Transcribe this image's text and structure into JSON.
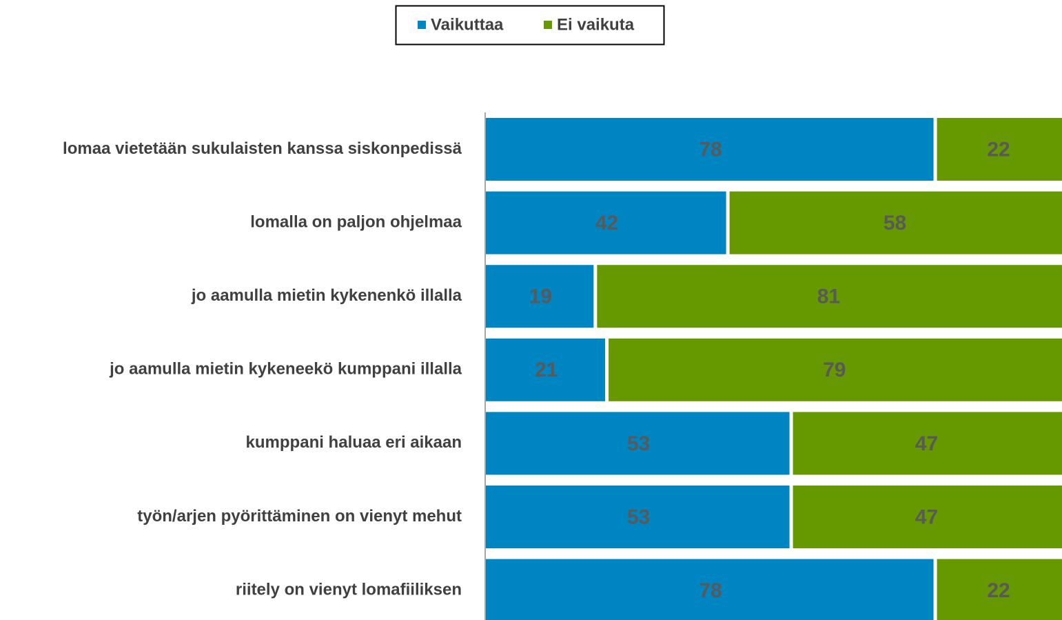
{
  "chart_data": {
    "type": "stacked-bar-horizontal",
    "categories": [
      "lomaa vietetään sukulaisten kanssa siskonpedissä",
      "lomalla on paljon ohjelmaa",
      "jo aamulla mietin kykenenkö illalla",
      "jo aamulla mietin kykeneekö kumppani illalla",
      "kumppani haluaa eri aikaan",
      "työn/arjen pyörittäminen on vienyt mehut",
      "riitely on vienyt lomafiiliksen"
    ],
    "series": [
      {
        "name": "Vaikuttaa",
        "color": "#0085c3",
        "values": [
          78,
          42,
          19,
          21,
          53,
          53,
          78
        ]
      },
      {
        "name": "Ei vaikuta",
        "color": "#669900",
        "values": [
          22,
          58,
          81,
          79,
          47,
          47,
          22
        ]
      }
    ],
    "xlim": [
      0,
      100
    ],
    "legend": "top"
  }
}
